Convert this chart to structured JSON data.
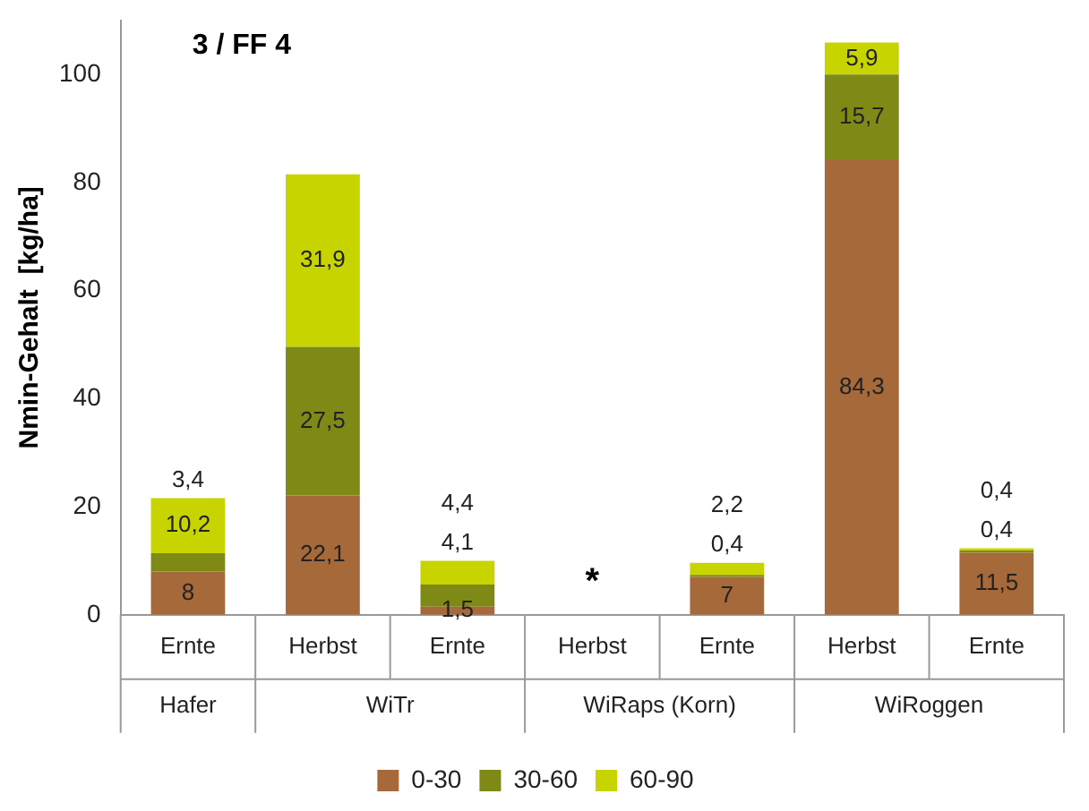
{
  "chart_data": {
    "type": "bar",
    "title": "3 / FF 4",
    "ylabel": "Nmin-Gehalt  [kg/ha]",
    "categories": [
      "Ernte",
      "Herbst",
      "Ernte",
      "Herbst",
      "Ernte",
      "Herbst",
      "Ernte"
    ],
    "stacked": true,
    "ylim": [
      0,
      110
    ],
    "yticks": [
      0,
      20,
      40,
      60,
      80,
      100
    ],
    "grid": false,
    "legend": "bottom",
    "series": [
      {
        "name": "0-30",
        "color": "#a5693a",
        "values": [
          8,
          22.1,
          1.5,
          null,
          7,
          84.3,
          11.5
        ],
        "value_labels": [
          "8",
          "22,1",
          "1,5",
          null,
          "7",
          "84,3",
          "11,5"
        ]
      },
      {
        "name": "30-60",
        "color": "#7f8a16",
        "values": [
          3.4,
          27.5,
          4.1,
          null,
          0.4,
          15.7,
          0.4
        ],
        "value_labels": [
          "3,4",
          "27,5",
          "4,1",
          null,
          "0,4",
          "15,7",
          "0,4"
        ]
      },
      {
        "name": "60-90",
        "color": "#c8d400",
        "values": [
          10.2,
          31.9,
          4.4,
          null,
          2.2,
          5.9,
          0.4
        ],
        "value_labels": [
          "10,2",
          "31,9",
          "4,4",
          null,
          "2,2",
          "5,9",
          "0,4"
        ]
      }
    ],
    "annotations": [
      "Hafer",
      "WiTr",
      "WiRaps (Korn)",
      "WiRoggen",
      "*"
    ]
  }
}
